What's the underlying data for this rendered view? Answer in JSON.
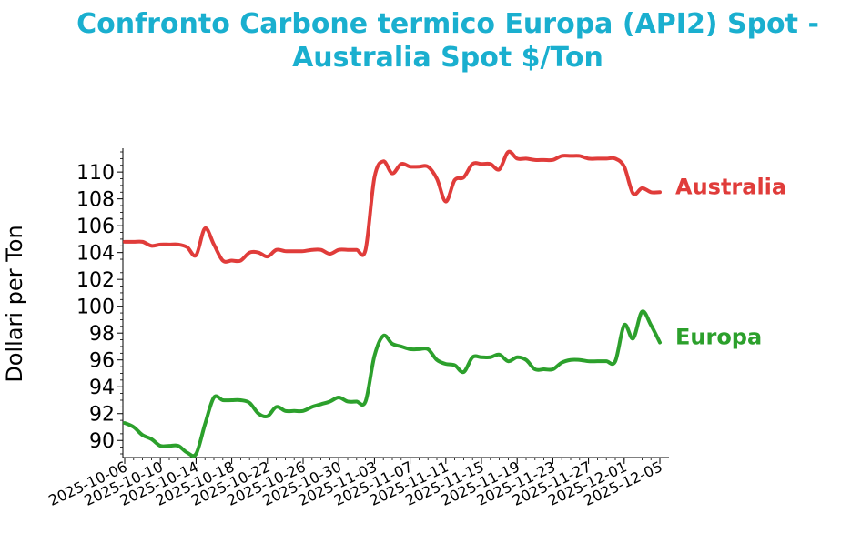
{
  "chart_data": {
    "type": "line",
    "title_line1": "Confronto Carbone termico Europa (API2) Spot -",
    "title_line2": "Australia Spot $/Ton",
    "xlabel": "",
    "ylabel": "Dollari per Ton",
    "ylim": [
      89.0,
      111.5
    ],
    "yticks": [
      90,
      92,
      94,
      96,
      98,
      100,
      102,
      104,
      106,
      108,
      110
    ],
    "xlim": [
      "2025-10-06",
      "2025-12-05"
    ],
    "xtick_labels": [
      "2025-10-06",
      "2025-10-10",
      "2025-10-14",
      "2025-10-18",
      "2025-10-22",
      "2025-10-26",
      "2025-10-30",
      "2025-11-03",
      "2025-11-07",
      "2025-11-11",
      "2025-11-15",
      "2025-11-19",
      "2025-11-23",
      "2025-11-27",
      "2025-12-01",
      "2025-12-05"
    ],
    "grid": false,
    "legend": "inline labels at line ends",
    "series": [
      {
        "name": "Australia",
        "color": "#e03c3a",
        "points": [
          [
            "2025-10-06",
            104.8
          ],
          [
            "2025-10-07",
            104.8
          ],
          [
            "2025-10-08",
            104.8
          ],
          [
            "2025-10-09",
            104.5
          ],
          [
            "2025-10-10",
            104.6
          ],
          [
            "2025-10-11",
            104.6
          ],
          [
            "2025-10-12",
            104.6
          ],
          [
            "2025-10-13",
            104.4
          ],
          [
            "2025-10-14",
            103.8
          ],
          [
            "2025-10-15",
            105.8
          ],
          [
            "2025-10-16",
            104.6
          ],
          [
            "2025-10-17",
            103.4
          ],
          [
            "2025-10-18",
            103.4
          ],
          [
            "2025-10-19",
            103.4
          ],
          [
            "2025-10-20",
            104.0
          ],
          [
            "2025-10-21",
            104.0
          ],
          [
            "2025-10-22",
            103.7
          ],
          [
            "2025-10-23",
            104.2
          ],
          [
            "2025-10-24",
            104.1
          ],
          [
            "2025-10-25",
            104.1
          ],
          [
            "2025-10-26",
            104.1
          ],
          [
            "2025-10-27",
            104.2
          ],
          [
            "2025-10-28",
            104.2
          ],
          [
            "2025-10-29",
            103.9
          ],
          [
            "2025-10-30",
            104.2
          ],
          [
            "2025-10-31",
            104.2
          ],
          [
            "2025-11-01",
            104.2
          ],
          [
            "2025-11-02",
            104.2
          ],
          [
            "2025-11-03",
            109.6
          ],
          [
            "2025-11-04",
            110.8
          ],
          [
            "2025-11-05",
            109.9
          ],
          [
            "2025-11-06",
            110.6
          ],
          [
            "2025-11-07",
            110.4
          ],
          [
            "2025-11-08",
            110.4
          ],
          [
            "2025-11-09",
            110.4
          ],
          [
            "2025-11-10",
            109.5
          ],
          [
            "2025-11-11",
            107.8
          ],
          [
            "2025-11-12",
            109.4
          ],
          [
            "2025-11-13",
            109.6
          ],
          [
            "2025-11-14",
            110.6
          ],
          [
            "2025-11-15",
            110.6
          ],
          [
            "2025-11-16",
            110.6
          ],
          [
            "2025-11-17",
            110.2
          ],
          [
            "2025-11-18",
            111.5
          ],
          [
            "2025-11-19",
            111.0
          ],
          [
            "2025-11-20",
            111.0
          ],
          [
            "2025-11-21",
            110.9
          ],
          [
            "2025-11-22",
            110.9
          ],
          [
            "2025-11-23",
            110.9
          ],
          [
            "2025-11-24",
            111.2
          ],
          [
            "2025-11-25",
            111.2
          ],
          [
            "2025-11-26",
            111.2
          ],
          [
            "2025-11-27",
            111.0
          ],
          [
            "2025-11-28",
            111.0
          ],
          [
            "2025-11-29",
            111.0
          ],
          [
            "2025-11-30",
            111.0
          ],
          [
            "2025-12-01",
            110.4
          ],
          [
            "2025-12-02",
            108.4
          ],
          [
            "2025-12-03",
            108.8
          ],
          [
            "2025-12-04",
            108.5
          ],
          [
            "2025-12-05",
            108.5
          ]
        ]
      },
      {
        "name": "Europa",
        "color": "#2ca02c",
        "points": [
          [
            "2025-10-06",
            91.3
          ],
          [
            "2025-10-07",
            91.0
          ],
          [
            "2025-10-08",
            90.4
          ],
          [
            "2025-10-09",
            90.1
          ],
          [
            "2025-10-10",
            89.6
          ],
          [
            "2025-10-11",
            89.6
          ],
          [
            "2025-10-12",
            89.6
          ],
          [
            "2025-10-13",
            89.1
          ],
          [
            "2025-10-14",
            89.0
          ],
          [
            "2025-10-15",
            91.2
          ],
          [
            "2025-10-16",
            93.2
          ],
          [
            "2025-10-17",
            93.0
          ],
          [
            "2025-10-18",
            93.0
          ],
          [
            "2025-10-19",
            93.0
          ],
          [
            "2025-10-20",
            92.8
          ],
          [
            "2025-10-21",
            92.0
          ],
          [
            "2025-10-22",
            91.8
          ],
          [
            "2025-10-23",
            92.5
          ],
          [
            "2025-10-24",
            92.2
          ],
          [
            "2025-10-25",
            92.2
          ],
          [
            "2025-10-26",
            92.2
          ],
          [
            "2025-10-27",
            92.5
          ],
          [
            "2025-10-28",
            92.7
          ],
          [
            "2025-10-29",
            92.9
          ],
          [
            "2025-10-30",
            93.2
          ],
          [
            "2025-10-31",
            92.9
          ],
          [
            "2025-11-01",
            92.9
          ],
          [
            "2025-11-02",
            92.9
          ],
          [
            "2025-11-03",
            96.3
          ],
          [
            "2025-11-04",
            97.8
          ],
          [
            "2025-11-05",
            97.2
          ],
          [
            "2025-11-06",
            97.0
          ],
          [
            "2025-11-07",
            96.8
          ],
          [
            "2025-11-08",
            96.8
          ],
          [
            "2025-11-09",
            96.8
          ],
          [
            "2025-11-10",
            96.0
          ],
          [
            "2025-11-11",
            95.7
          ],
          [
            "2025-11-12",
            95.6
          ],
          [
            "2025-11-13",
            95.1
          ],
          [
            "2025-11-14",
            96.2
          ],
          [
            "2025-11-15",
            96.2
          ],
          [
            "2025-11-16",
            96.2
          ],
          [
            "2025-11-17",
            96.4
          ],
          [
            "2025-11-18",
            95.9
          ],
          [
            "2025-11-19",
            96.2
          ],
          [
            "2025-11-20",
            96.0
          ],
          [
            "2025-11-21",
            95.3
          ],
          [
            "2025-11-22",
            95.3
          ],
          [
            "2025-11-23",
            95.3
          ],
          [
            "2025-11-24",
            95.8
          ],
          [
            "2025-11-25",
            96.0
          ],
          [
            "2025-11-26",
            96.0
          ],
          [
            "2025-11-27",
            95.9
          ],
          [
            "2025-11-28",
            95.9
          ],
          [
            "2025-11-29",
            95.9
          ],
          [
            "2025-11-30",
            95.9
          ],
          [
            "2025-12-01",
            98.6
          ],
          [
            "2025-12-02",
            97.6
          ],
          [
            "2025-12-03",
            99.6
          ],
          [
            "2025-12-04",
            98.6
          ],
          [
            "2025-12-05",
            97.3
          ]
        ]
      }
    ]
  }
}
